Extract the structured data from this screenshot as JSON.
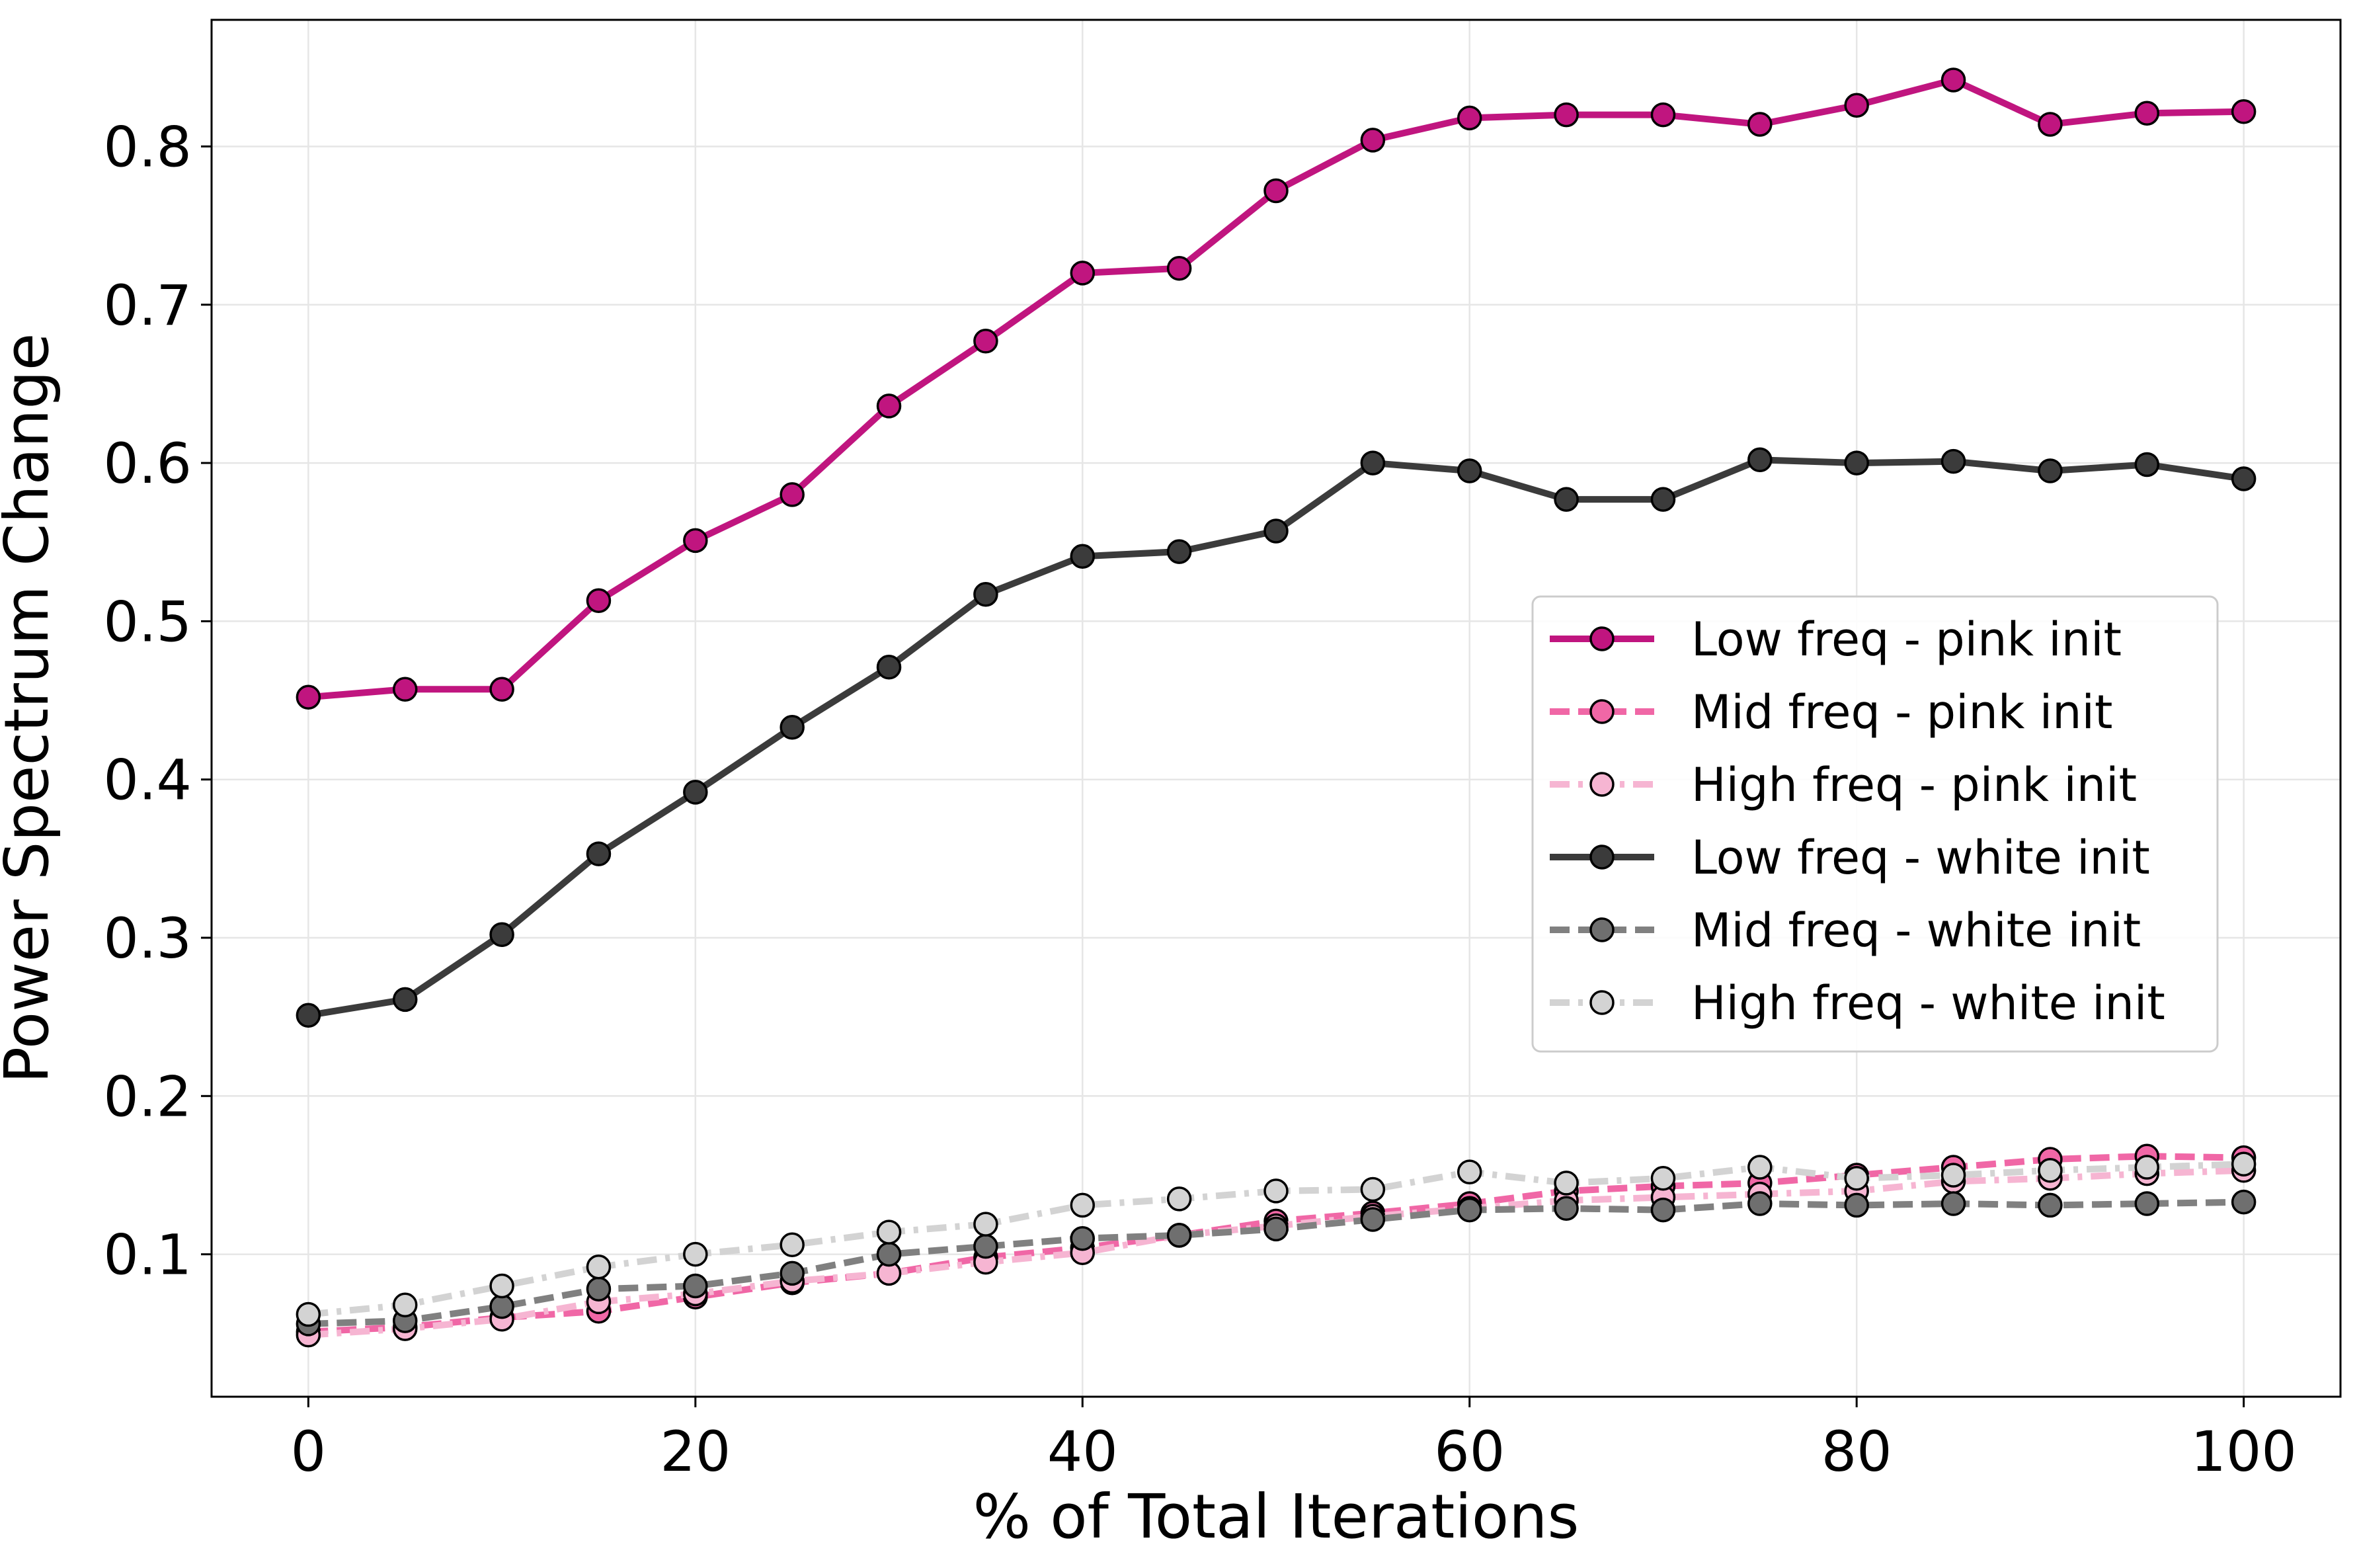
{
  "chart_data": {
    "type": "line",
    "title": "",
    "xlabel": "% of Total Iterations",
    "ylabel": "Power Spectrum Change",
    "xlim": [
      -5,
      105
    ],
    "ylim": [
      0.01,
      0.88
    ],
    "xticks": [
      0,
      20,
      40,
      60,
      80,
      100
    ],
    "yticks": [
      0.1,
      0.2,
      0.3,
      0.4,
      0.5,
      0.6,
      0.7,
      0.8
    ],
    "grid": true,
    "legend_position": "center-right",
    "x": [
      0,
      5,
      10,
      15,
      20,
      25,
      30,
      35,
      40,
      45,
      50,
      55,
      60,
      65,
      70,
      75,
      80,
      85,
      90,
      95,
      100
    ],
    "series": [
      {
        "name": "Low freq - pink init",
        "color": "#c0157f",
        "dash": "solid",
        "marker_fill": "#c0157f",
        "values": [
          0.452,
          0.457,
          0.457,
          0.513,
          0.551,
          0.58,
          0.636,
          0.677,
          0.72,
          0.723,
          0.772,
          0.804,
          0.818,
          0.82,
          0.82,
          0.814,
          0.826,
          0.842,
          0.814,
          0.821,
          0.822
        ]
      },
      {
        "name": "Mid freq - pink init",
        "color": "#f067a6",
        "dash": "dashed",
        "marker_fill": "#f067a6",
        "values": [
          0.051,
          0.054,
          0.06,
          0.064,
          0.073,
          0.082,
          0.088,
          0.098,
          0.104,
          0.112,
          0.121,
          0.126,
          0.132,
          0.14,
          0.143,
          0.145,
          0.15,
          0.155,
          0.16,
          0.162,
          0.161
        ]
      },
      {
        "name": "High freq - pink init",
        "color": "#f6b5d2",
        "dash": "dashdot",
        "marker_fill": "#f6b5d2",
        "values": [
          0.049,
          0.053,
          0.059,
          0.07,
          0.075,
          0.083,
          0.088,
          0.095,
          0.101,
          0.112,
          0.118,
          0.124,
          0.129,
          0.134,
          0.136,
          0.138,
          0.14,
          0.146,
          0.148,
          0.151,
          0.153
        ]
      },
      {
        "name": "Low freq - white init",
        "color": "#3b3b3b",
        "dash": "solid",
        "marker_fill": "#3b3b3b",
        "values": [
          0.251,
          0.261,
          0.302,
          0.353,
          0.392,
          0.433,
          0.471,
          0.517,
          0.541,
          0.544,
          0.557,
          0.6,
          0.595,
          0.577,
          0.577,
          0.602,
          0.6,
          0.601,
          0.595,
          0.599,
          0.59
        ]
      },
      {
        "name": "Mid freq - white init",
        "color": "#808080",
        "dash": "dashed",
        "marker_fill": "#6f6f6f",
        "values": [
          0.056,
          0.058,
          0.067,
          0.078,
          0.08,
          0.088,
          0.1,
          0.105,
          0.11,
          0.112,
          0.116,
          0.122,
          0.128,
          0.129,
          0.128,
          0.132,
          0.131,
          0.132,
          0.131,
          0.132,
          0.133
        ]
      },
      {
        "name": "High freq - white init",
        "color": "#d3d3d3",
        "dash": "dashdot",
        "marker_fill": "#d3d3d3",
        "values": [
          0.062,
          0.068,
          0.08,
          0.092,
          0.1,
          0.106,
          0.114,
          0.119,
          0.131,
          0.135,
          0.14,
          0.141,
          0.152,
          0.145,
          0.148,
          0.155,
          0.148,
          0.15,
          0.153,
          0.155,
          0.157
        ]
      }
    ]
  }
}
